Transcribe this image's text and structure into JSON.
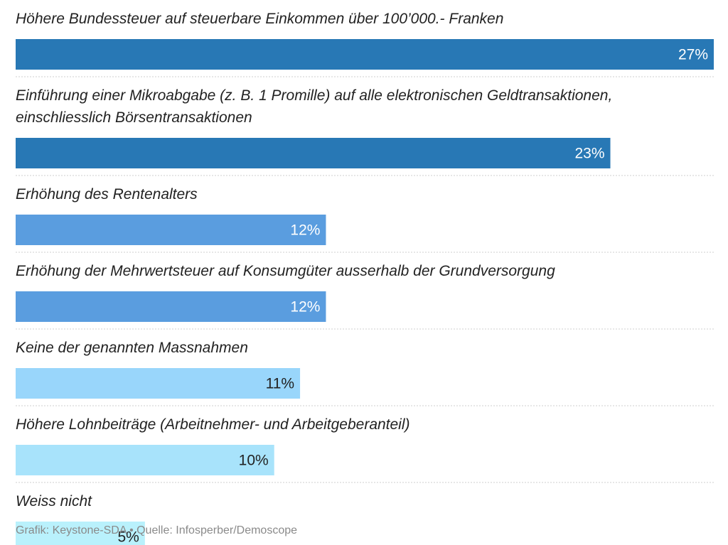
{
  "chart_data": {
    "type": "bar",
    "orientation": "horizontal",
    "categories": [
      [
        "Höhere Bundessteuer auf steuerbare Einkommen über 100’000.- Franken"
      ],
      [
        "Einführung einer Mikroabgabe (z. B. 1 Promille) auf alle elektronischen Geldtransaktionen,",
        "einschliesslich Börsentransaktionen"
      ],
      [
        "Erhöhung des Rentenalters"
      ],
      [
        "Erhöhung der Mehrwertsteuer auf Konsumgüter ausserhalb der Grundversorgung"
      ],
      [
        "Keine der genannten Massnahmen"
      ],
      [
        "Höhere Lohnbeiträge (Arbeitnehmer- und Arbeitgeberanteil)"
      ],
      [
        "Weiss nicht"
      ]
    ],
    "values": [
      27,
      23,
      12,
      12,
      11,
      10,
      5
    ],
    "value_labels": [
      "27%",
      "23%",
      "12%",
      "12%",
      "11%",
      "10%",
      "5%"
    ],
    "xlim": [
      0,
      27
    ],
    "bar_colors": [
      "#2878b5",
      "#2878b5",
      "#5a9ddf",
      "#5a9ddf",
      "#99d6fb",
      "#a8e3fb",
      "#b9f1fc"
    ],
    "label_colors": [
      "#ffffff",
      "#ffffff",
      "#ffffff",
      "#ffffff",
      "#222222",
      "#222222",
      "#222222"
    ],
    "separator_color": "#cfcfcf"
  },
  "footer": {
    "source": "Grafik: Keystone-SDA • Quelle: Infosperber/Demoscope"
  }
}
